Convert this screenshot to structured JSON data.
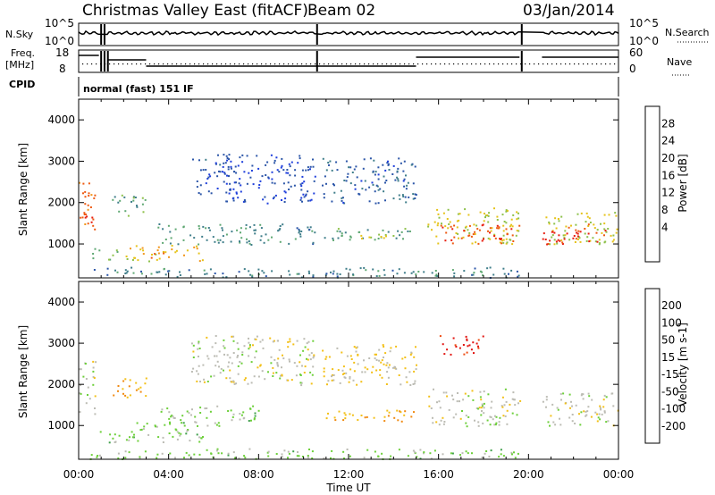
{
  "header": {
    "station": "Christmas Valley East (fitACF)",
    "beam": "Beam 02",
    "date": "03/Jan/2014"
  },
  "summary": {
    "nsky_label": "N.Sky",
    "nsky_ticks": [
      "10^5",
      "10^0"
    ],
    "nsearch_label": "N.Search",
    "nsearch_ticks": [
      "10^5",
      "10^0"
    ],
    "freq_label": "Freq.",
    "freq_unit": "[MHz]",
    "freq_ticks": [
      "18",
      "8"
    ],
    "nave_label": "Nave",
    "nave_ticks": [
      "60",
      "0"
    ],
    "cpid_label": "CPID",
    "cpid_value": "normal (fast) 151 IF"
  },
  "panels": {
    "ylabel": "Slant Range [km]",
    "xlabel": "Time UT",
    "xticks": [
      "00:00",
      "04:00",
      "08:00",
      "12:00",
      "16:00",
      "20:00",
      "00:00"
    ],
    "yticks": [
      "1000",
      "2000",
      "3000",
      "4000"
    ]
  },
  "power_scale": {
    "label": "Power [dB]",
    "ticks": [
      "4",
      "8",
      "12",
      "16",
      "20",
      "24",
      "28"
    ],
    "colors": [
      "#1f3fdc",
      "#2b55a8",
      "#3f7e8a",
      "#5fa873",
      "#8ec14a",
      "#e5c31a",
      "#f2961a",
      "#ee5a12",
      "#e81e10"
    ]
  },
  "velocity_scale": {
    "label": "Velocity [m s-1]",
    "ticks": [
      "200",
      "100",
      "50",
      "15",
      "-15",
      "-50",
      "-100",
      "-200"
    ],
    "colors": [
      "#1f3fdc",
      "#2b6a6a",
      "#3fa04b",
      "#6dcf3a",
      "#bcbcb4",
      "#f3c018",
      "#f08a12",
      "#ee4a10",
      "#e21410"
    ]
  },
  "chart_data": [
    {
      "type": "heatmap",
      "title": "Power [dB]",
      "xlabel": "Time UT",
      "ylabel": "Slant Range [km]",
      "xlim": [
        0,
        24
      ],
      "ylim": [
        180,
        4500
      ],
      "clim": [
        0,
        32
      ],
      "blocks": [
        {
          "t0": 0.0,
          "t1": 0.75,
          "r0": 1300,
          "r1": 2600,
          "v": 26
        },
        {
          "t0": 0.1,
          "t1": 0.6,
          "r0": 1500,
          "r1": 1900,
          "v": 29
        },
        {
          "t0": 0.6,
          "t1": 1.8,
          "r0": 600,
          "r1": 900,
          "v": 14
        },
        {
          "t0": 1.4,
          "t1": 3.0,
          "r0": 1700,
          "r1": 2200,
          "v": 12
        },
        {
          "t0": 2.0,
          "t1": 5.5,
          "r0": 600,
          "r1": 1000,
          "v": 20
        },
        {
          "t0": 3.0,
          "t1": 4.0,
          "r0": 650,
          "r1": 800,
          "v": 26
        },
        {
          "t0": 3.5,
          "t1": 8.0,
          "r0": 1000,
          "r1": 1500,
          "v": 10
        },
        {
          "t0": 5.0,
          "t1": 7.0,
          "r0": 2200,
          "r1": 3200,
          "v": 5
        },
        {
          "t0": 6.5,
          "t1": 10.5,
          "r0": 2000,
          "r1": 3200,
          "v": 4
        },
        {
          "t0": 8.0,
          "t1": 10.5,
          "r0": 1000,
          "r1": 1500,
          "v": 9
        },
        {
          "t0": 10.8,
          "t1": 15.0,
          "r0": 2000,
          "r1": 3100,
          "v": 6
        },
        {
          "t0": 10.8,
          "t1": 15.0,
          "r0": 1100,
          "r1": 1400,
          "v": 12
        },
        {
          "t0": 12.0,
          "t1": 14.0,
          "r0": 1150,
          "r1": 1350,
          "v": 18
        },
        {
          "t0": 15.5,
          "t1": 19.6,
          "r0": 1000,
          "r1": 1900,
          "v": 18
        },
        {
          "t0": 16.0,
          "t1": 19.6,
          "r0": 1000,
          "r1": 1500,
          "v": 28
        },
        {
          "t0": 20.6,
          "t1": 24.0,
          "r0": 1000,
          "r1": 1800,
          "v": 18
        },
        {
          "t0": 20.6,
          "t1": 23.4,
          "r0": 1000,
          "r1": 1500,
          "v": 29
        },
        {
          "t0": 0.5,
          "t1": 19.6,
          "r0": 200,
          "r1": 450,
          "v": 9
        }
      ]
    },
    {
      "type": "heatmap",
      "title": "Velocity [m s-1]",
      "xlabel": "Time UT",
      "ylabel": "Slant Range [km]",
      "xlim": [
        0,
        24
      ],
      "ylim": [
        180,
        4500
      ],
      "clim": [
        -200,
        200
      ],
      "blocks": [
        {
          "t0": 0.0,
          "t1": 0.75,
          "r0": 1300,
          "r1": 2600,
          "v": 0
        },
        {
          "t0": 0.8,
          "t1": 2.0,
          "r0": 600,
          "r1": 900,
          "v": 40
        },
        {
          "t0": 1.4,
          "t1": 3.0,
          "r0": 1700,
          "r1": 2200,
          "v": -60
        },
        {
          "t0": 2.0,
          "t1": 5.5,
          "r0": 600,
          "r1": 1100,
          "v": 40
        },
        {
          "t0": 3.5,
          "t1": 8.0,
          "r0": 1000,
          "r1": 1500,
          "v": 35
        },
        {
          "t0": 5.0,
          "t1": 10.5,
          "r0": 2000,
          "r1": 3200,
          "v": 0
        },
        {
          "t0": 10.8,
          "t1": 15.0,
          "r0": 1100,
          "r1": 1400,
          "v": -60
        },
        {
          "t0": 10.8,
          "t1": 15.0,
          "r0": 2000,
          "r1": 3000,
          "v": -30
        },
        {
          "t0": 15.5,
          "t1": 19.6,
          "r0": 1000,
          "r1": 1900,
          "v": 0
        },
        {
          "t0": 16.0,
          "t1": 18.0,
          "r0": 2700,
          "r1": 3200,
          "v": -180
        },
        {
          "t0": 20.6,
          "t1": 24.0,
          "r0": 1000,
          "r1": 1800,
          "v": 0
        },
        {
          "t0": 0.5,
          "t1": 19.6,
          "r0": 200,
          "r1": 450,
          "v": 35
        }
      ]
    }
  ]
}
